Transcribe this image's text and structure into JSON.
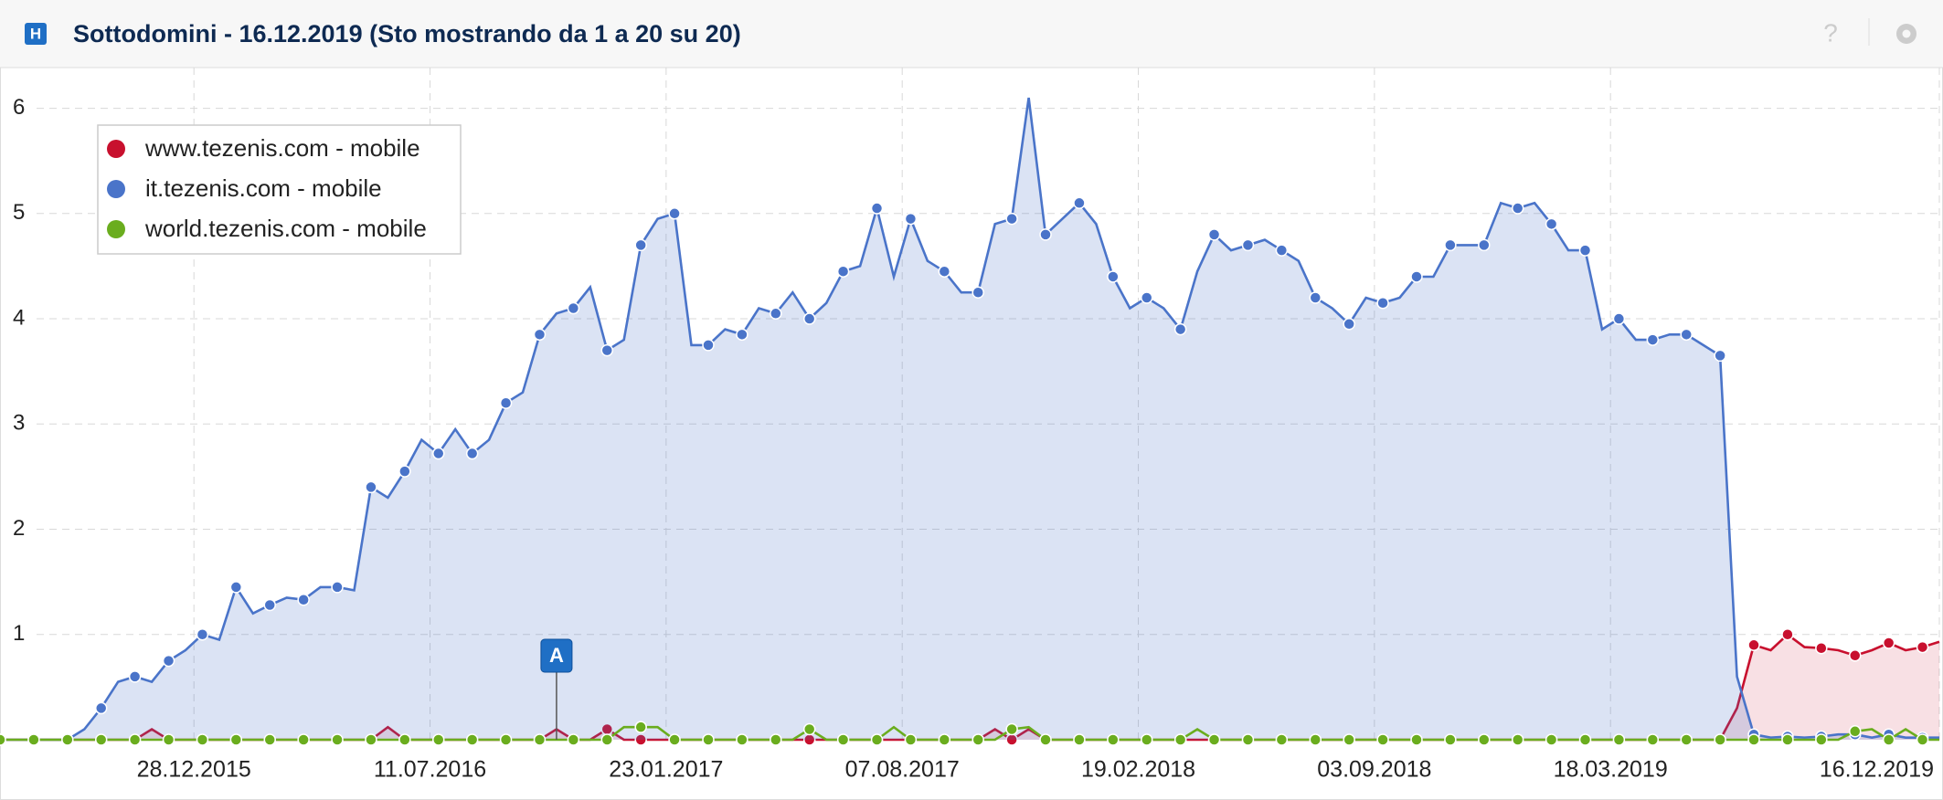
{
  "header": {
    "icon": "H",
    "title": "Sottodomini - 16.12.2019 (Sto mostrando da 1 a 20 su 20)",
    "help": "?"
  },
  "chart_data": {
    "type": "area",
    "legend": "top-left",
    "grid": true,
    "x": [
      "2015-07-20",
      "2015-08-03",
      "2015-08-17",
      "2015-08-31",
      "2015-09-14",
      "2015-09-28",
      "2015-10-12",
      "2015-10-26",
      "2015-11-09",
      "2015-11-23",
      "2015-12-07",
      "2015-12-21",
      "2016-01-04",
      "2016-01-18",
      "2016-02-01",
      "2016-02-15",
      "2016-02-29",
      "2016-03-14",
      "2016-03-28",
      "2016-04-11",
      "2016-04-25",
      "2016-05-09",
      "2016-05-23",
      "2016-06-06",
      "2016-06-20",
      "2016-07-04",
      "2016-07-18",
      "2016-08-01",
      "2016-08-15",
      "2016-08-29",
      "2016-09-12",
      "2016-09-26",
      "2016-10-10",
      "2016-10-24",
      "2016-11-07",
      "2016-11-21",
      "2016-12-05",
      "2016-12-19",
      "2017-01-02",
      "2017-01-16",
      "2017-01-30",
      "2017-02-13",
      "2017-02-27",
      "2017-03-13",
      "2017-03-27",
      "2017-04-10",
      "2017-04-24",
      "2017-05-08",
      "2017-05-22",
      "2017-06-05",
      "2017-06-19",
      "2017-07-03",
      "2017-07-17",
      "2017-07-31",
      "2017-08-14",
      "2017-08-28",
      "2017-09-11",
      "2017-09-25",
      "2017-10-09",
      "2017-10-23",
      "2017-11-06",
      "2017-11-20",
      "2017-12-04",
      "2017-12-18",
      "2018-01-01",
      "2018-01-15",
      "2018-01-29",
      "2018-02-12",
      "2018-02-26",
      "2018-03-12",
      "2018-03-26",
      "2018-04-09",
      "2018-04-23",
      "2018-05-07",
      "2018-05-21",
      "2018-06-04",
      "2018-06-18",
      "2018-07-02",
      "2018-07-16",
      "2018-07-30",
      "2018-08-13",
      "2018-08-27",
      "2018-09-10",
      "2018-09-24",
      "2018-10-08",
      "2018-10-22",
      "2018-11-05",
      "2018-11-19",
      "2018-12-03",
      "2018-12-17",
      "2018-12-31",
      "2019-01-14",
      "2019-01-28",
      "2019-02-11",
      "2019-02-25",
      "2019-03-11",
      "2019-03-25",
      "2019-04-08",
      "2019-04-22",
      "2019-05-06",
      "2019-05-20",
      "2019-06-03",
      "2019-06-17",
      "2019-07-01",
      "2019-07-15",
      "2019-07-29",
      "2019-08-12",
      "2019-08-26",
      "2019-09-09",
      "2019-09-23",
      "2019-10-07",
      "2019-10-21",
      "2019-11-04",
      "2019-11-18",
      "2019-12-02",
      "2019-12-16"
    ],
    "series": [
      {
        "name": "www.tezenis.com - mobile",
        "color": "#c8102e",
        "fill": "rgba(200,16,46,0.13)",
        "values": [
          0,
          0,
          0,
          0,
          0,
          0,
          0,
          0,
          0,
          0.1,
          0,
          0,
          0,
          0,
          0,
          0,
          0,
          0,
          0,
          0,
          0,
          0,
          0,
          0.12,
          0,
          0,
          0,
          0,
          0,
          0,
          0,
          0,
          0,
          0.1,
          0,
          0,
          0.1,
          0,
          0,
          0,
          0,
          0,
          0,
          0,
          0,
          0,
          0,
          0,
          0,
          0,
          0,
          0,
          0,
          0,
          0,
          0,
          0,
          0,
          0,
          0.1,
          0,
          0.1,
          0,
          0,
          0,
          0,
          0,
          0,
          0,
          0,
          0,
          0,
          0,
          0,
          0,
          0,
          0,
          0,
          0,
          0,
          0,
          0,
          0,
          0,
          0,
          0,
          0,
          0,
          0,
          0,
          0,
          0,
          0,
          0,
          0,
          0,
          0,
          0,
          0,
          0,
          0,
          0,
          0,
          0.3,
          0.9,
          0.85,
          1.0,
          0.88,
          0.87,
          0.85,
          0.8,
          0.85,
          0.92,
          0.85,
          0.88,
          0.93
        ]
      },
      {
        "name": "it.tezenis.com - mobile",
        "color": "#4a74c9",
        "fill": "rgba(74,116,201,0.2)",
        "values": [
          0,
          0,
          0,
          0,
          0,
          0.1,
          0.3,
          0.55,
          0.6,
          0.55,
          0.75,
          0.85,
          1.0,
          0.95,
          1.45,
          1.2,
          1.28,
          1.35,
          1.33,
          1.45,
          1.45,
          1.42,
          2.4,
          2.3,
          2.55,
          2.85,
          2.72,
          2.95,
          2.72,
          2.85,
          3.2,
          3.3,
          3.85,
          4.05,
          4.1,
          4.3,
          3.7,
          3.8,
          4.7,
          4.95,
          5.0,
          3.75,
          3.75,
          3.9,
          3.85,
          4.1,
          4.05,
          4.25,
          4.0,
          4.15,
          4.45,
          4.5,
          5.05,
          4.4,
          4.95,
          4.55,
          4.45,
          4.25,
          4.25,
          4.9,
          4.95,
          6.1,
          4.8,
          4.95,
          5.1,
          4.9,
          4.4,
          4.1,
          4.2,
          4.1,
          3.9,
          4.45,
          4.8,
          4.65,
          4.7,
          4.75,
          4.65,
          4.55,
          4.2,
          4.1,
          3.95,
          4.2,
          4.15,
          4.2,
          4.4,
          4.4,
          4.7,
          4.7,
          4.7,
          5.1,
          5.05,
          5.1,
          4.9,
          4.65,
          4.65,
          3.9,
          4.0,
          3.8,
          3.8,
          3.85,
          3.85,
          3.75,
          3.65,
          0.6,
          0.05,
          0.02,
          0.03,
          0.02,
          0.03,
          0.05,
          0.05,
          0.02,
          0.05,
          0.02,
          0.02,
          0.02
        ]
      },
      {
        "name": "world.tezenis.com - mobile",
        "color": "#6aad1e",
        "fill": "none",
        "values": [
          0,
          0,
          0,
          0,
          0,
          0,
          0,
          0,
          0,
          0,
          0,
          0,
          0,
          0,
          0,
          0,
          0,
          0,
          0,
          0,
          0,
          0,
          0,
          0,
          0,
          0,
          0,
          0,
          0,
          0,
          0,
          0,
          0,
          0,
          0,
          0,
          0,
          0.12,
          0.12,
          0.12,
          0,
          0,
          0,
          0,
          0,
          0,
          0,
          0,
          0.1,
          0,
          0,
          0,
          0,
          0.12,
          0,
          0,
          0,
          0,
          0,
          0,
          0.1,
          0.12,
          0,
          0,
          0,
          0,
          0,
          0,
          0,
          0,
          0,
          0.1,
          0,
          0,
          0,
          0,
          0,
          0,
          0,
          0,
          0,
          0,
          0,
          0,
          0,
          0,
          0,
          0,
          0,
          0,
          0,
          0,
          0,
          0,
          0,
          0,
          0,
          0,
          0,
          0,
          0,
          0,
          0,
          0,
          0,
          0,
          0,
          0,
          0,
          0,
          0.08,
          0.1,
          0,
          0.1,
          0,
          0
        ]
      }
    ],
    "xlim": [
      "2015-07-20",
      "2019-12-16"
    ],
    "xticks": [
      {
        "value": "2015-12-28",
        "label": "28.12.2015"
      },
      {
        "value": "2016-07-11",
        "label": "11.07.2016"
      },
      {
        "value": "2017-01-23",
        "label": "23.01.2017"
      },
      {
        "value": "2017-08-07",
        "label": "07.08.2017"
      },
      {
        "value": "2018-02-19",
        "label": "19.02.2018"
      },
      {
        "value": "2018-09-03",
        "label": "03.09.2018"
      },
      {
        "value": "2019-03-18",
        "label": "18.03.2019"
      },
      {
        "value": "2019-12-16",
        "label": "16.12.2019"
      }
    ],
    "ylim": [
      0,
      6.3
    ],
    "yticks": [
      1,
      2,
      3,
      4,
      5,
      6
    ],
    "annotations": [
      {
        "label": "A",
        "x": "2016-10-24"
      }
    ]
  }
}
